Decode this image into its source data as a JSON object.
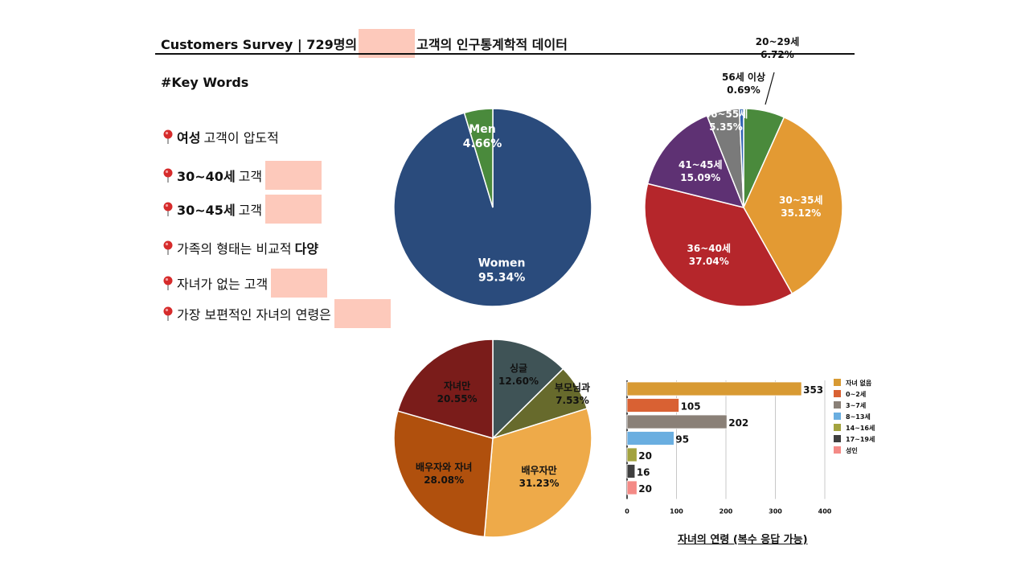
{
  "header": {
    "title_prefix": "Customers Survey | 729명의",
    "title_suffix": "고객의 인구통계학적 데이터"
  },
  "keywords": {
    "title": "#Key Words",
    "items": [
      {
        "bold": "여성",
        "normal": "고객이 압도적",
        "bold_first": true,
        "redacted": false
      },
      {
        "bold": "30~40세",
        "normal": "고객",
        "bold_first": true,
        "redacted": true
      },
      {
        "bold": "30~45세",
        "normal": "고객",
        "bold_first": true,
        "redacted": true
      },
      {
        "bold": "다양",
        "normal": "가족의 형태는 비교적",
        "bold_first": false,
        "redacted": false
      },
      {
        "bold": "",
        "normal": "자녀가 없는 고객",
        "bold_first": false,
        "redacted": true
      },
      {
        "bold": "",
        "normal": "가장 보편적인 자녀의 연령은",
        "bold_first": false,
        "redacted": true
      }
    ]
  },
  "colors": {
    "pin": "#d62b2b",
    "redact": "#fdc9bb"
  },
  "chart_data": [
    {
      "type": "pie",
      "slices": [
        {
          "label": "Women",
          "value": 95.34,
          "display": "95.34%",
          "color": "#2a4b7c"
        },
        {
          "label": "Men",
          "value": 4.66,
          "display": "4.66%",
          "color": "#4a8a3c"
        }
      ]
    },
    {
      "type": "pie",
      "slices": [
        {
          "label": "20~29세",
          "value": 6.72,
          "display": "6.72%",
          "color": "#4a8a3c"
        },
        {
          "label": "30~35세",
          "value": 35.12,
          "display": "35.12%",
          "color": "#e39a33"
        },
        {
          "label": "36~40세",
          "value": 37.04,
          "display": "37.04%",
          "color": "#b5262b"
        },
        {
          "label": "41~45세",
          "value": 15.09,
          "display": "15.09%",
          "color": "#5e3173"
        },
        {
          "label": "46~55세",
          "value": 5.35,
          "display": "5.35%",
          "color": "#7a7a7a"
        },
        {
          "label": "56세 이상",
          "value": 0.69,
          "display": "0.69%",
          "color": "#2f62b4"
        }
      ]
    },
    {
      "type": "pie",
      "slices": [
        {
          "label": "싱글",
          "value": 12.6,
          "display": "12.60%",
          "color": "#3f5356"
        },
        {
          "label": "부모님과",
          "value": 7.53,
          "display": "7.53%",
          "color": "#676a2c"
        },
        {
          "label": "배우자만",
          "value": 31.23,
          "display": "31.23%",
          "color": "#eeaa49"
        },
        {
          "label": "배우자와 자녀",
          "value": 28.08,
          "display": "28.08%",
          "color": "#b0500d"
        },
        {
          "label": "자녀만",
          "value": 20.55,
          "display": "20.55%",
          "color": "#7a1c1a"
        }
      ]
    },
    {
      "type": "bar",
      "orientation": "horizontal",
      "title": "자녀의 연령 (복수 응답 가능)",
      "categories": [
        "자녀 없음",
        "0~2세",
        "3~7세",
        "8~13세",
        "14~16세",
        "17~19세",
        "성인"
      ],
      "values": [
        353,
        105,
        202,
        95,
        20,
        16,
        20
      ],
      "colors": [
        "#d89a33",
        "#d96133",
        "#8a8077",
        "#6aaee0",
        "#a3a33f",
        "#3f3f3f",
        "#f48a86"
      ],
      "xlim": [
        0,
        400
      ],
      "xticks": [
        0,
        100,
        200,
        300,
        400
      ],
      "grid": true,
      "legend": "right"
    }
  ]
}
